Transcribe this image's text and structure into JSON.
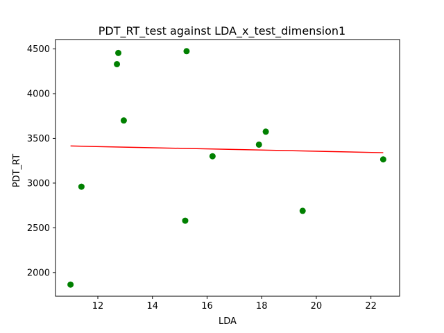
{
  "chart_data": {
    "type": "scatter",
    "title": "PDT_RT_test against LDA_x_test_dimension1",
    "xlabel": "LDA",
    "ylabel": "PDT_RT",
    "xlim": [
      10.45,
      23.05
    ],
    "ylim": [
      1735,
      4605
    ],
    "xticks": [
      12,
      14,
      16,
      18,
      20,
      22
    ],
    "yticks": [
      2000,
      2500,
      3000,
      3500,
      4000,
      4500
    ],
    "xtick_labels": [
      "12",
      "14",
      "16",
      "18",
      "20",
      "22"
    ],
    "ytick_labels": [
      "2000",
      "2500",
      "3000",
      "3500",
      "4000",
      "4500"
    ],
    "grid": false,
    "legend": false,
    "colors": {
      "points": "#008000",
      "fit_line": "#ff0000",
      "axes": "#000000",
      "background": "#ffffff"
    },
    "series": [
      {
        "type": "scatter",
        "points": [
          {
            "x": 11.0,
            "y": 1865
          },
          {
            "x": 11.4,
            "y": 2960
          },
          {
            "x": 12.7,
            "y": 4330
          },
          {
            "x": 12.75,
            "y": 4455
          },
          {
            "x": 12.95,
            "y": 3700
          },
          {
            "x": 15.2,
            "y": 2580
          },
          {
            "x": 15.25,
            "y": 4475
          },
          {
            "x": 16.2,
            "y": 3300
          },
          {
            "x": 17.9,
            "y": 3430
          },
          {
            "x": 18.15,
            "y": 3575
          },
          {
            "x": 19.5,
            "y": 2690
          },
          {
            "x": 22.45,
            "y": 3265
          }
        ]
      },
      {
        "type": "line",
        "points": [
          {
            "x": 11.0,
            "y": 3415
          },
          {
            "x": 22.45,
            "y": 3340
          }
        ]
      }
    ]
  }
}
